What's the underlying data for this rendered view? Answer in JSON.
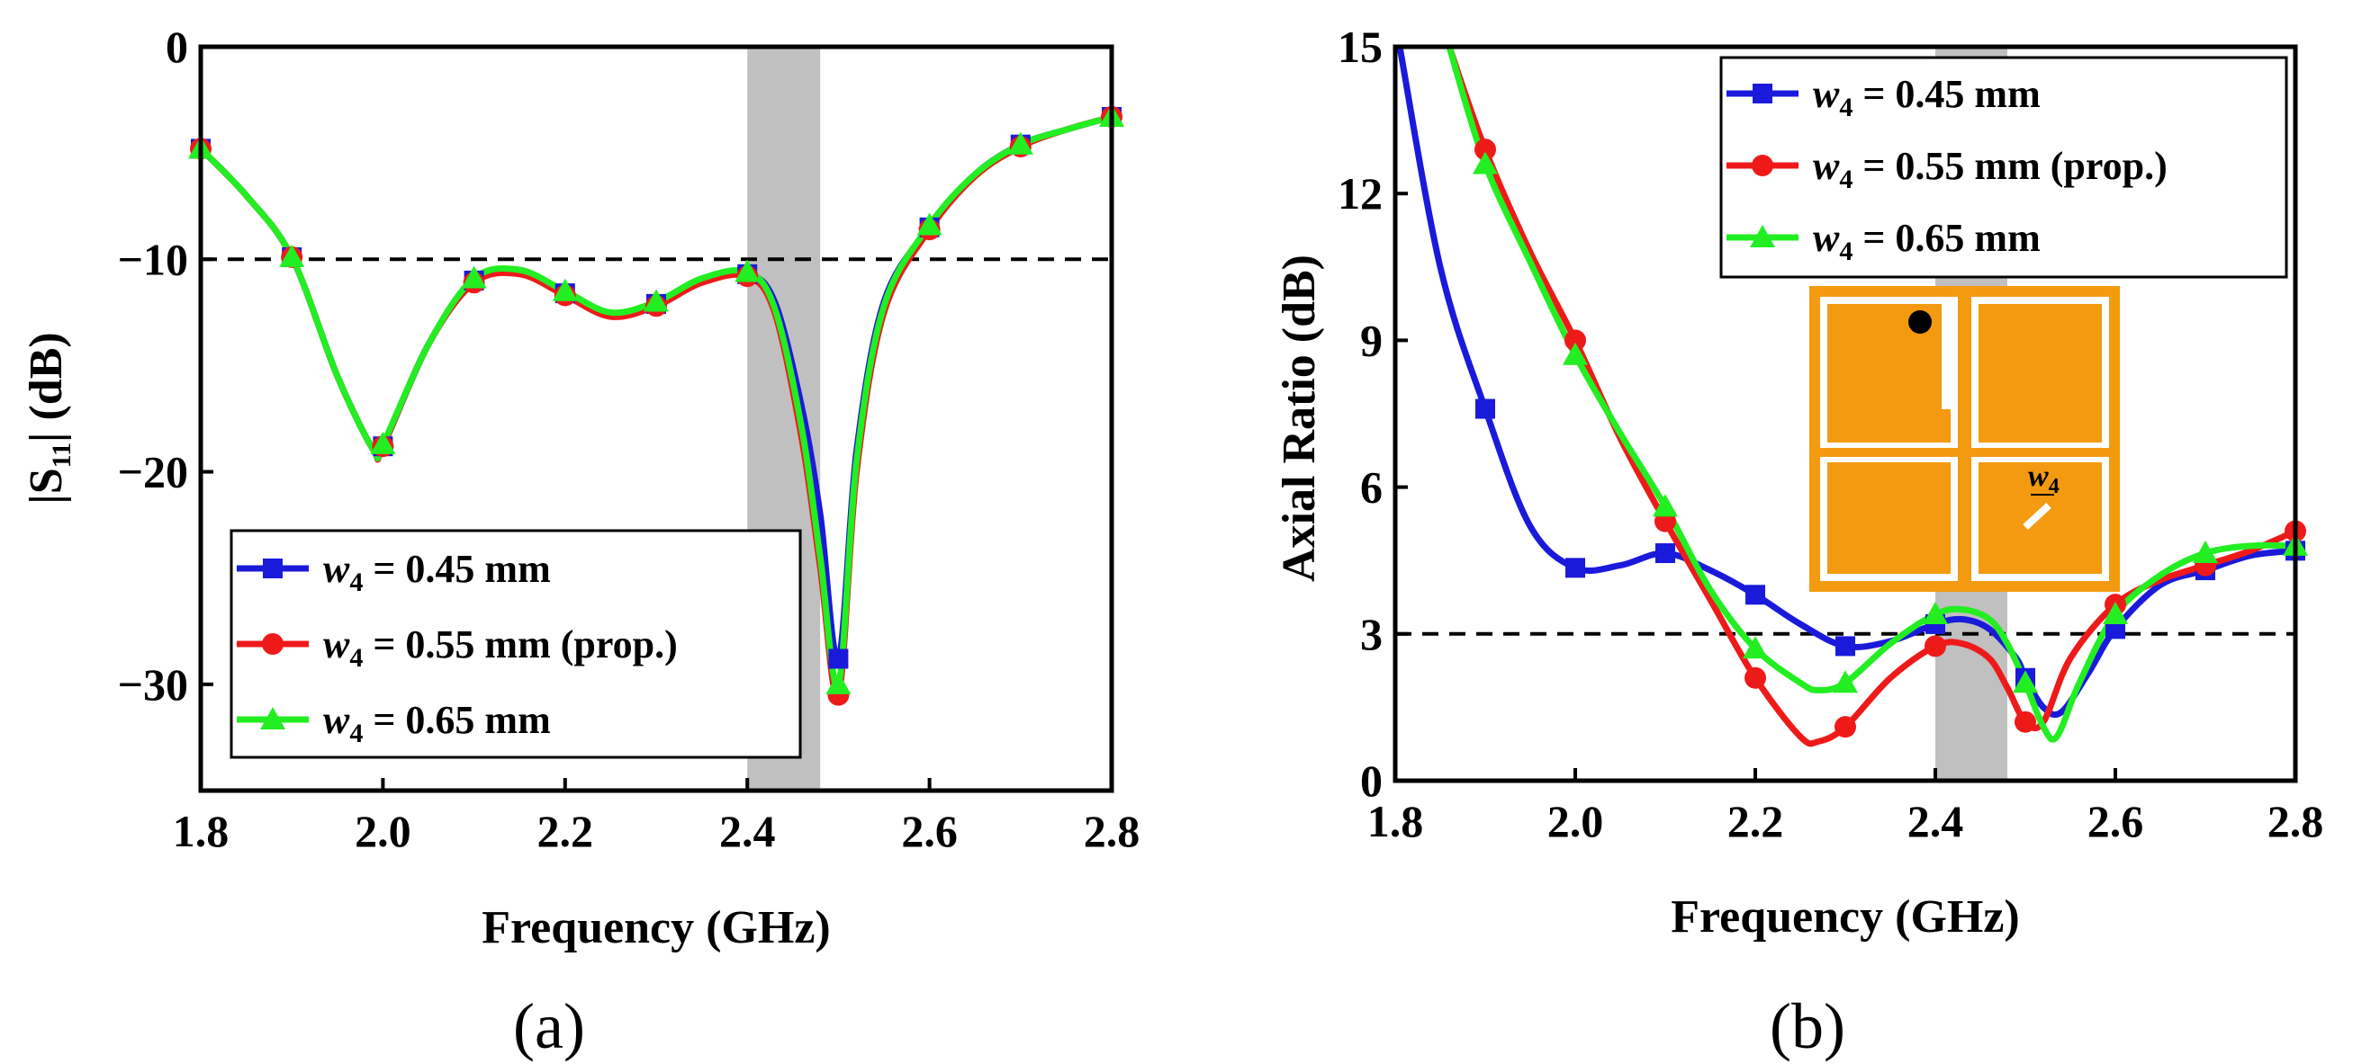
{
  "figure_labels": {
    "a": "(a)",
    "b": "(b)"
  },
  "colors": {
    "series_045": "#1a1adb",
    "series_055": "#ee1a1a",
    "series_065": "#22ee22",
    "band": "#c0c0c0",
    "patch": "#f39a10",
    "dashed": "#000000"
  },
  "inset": {
    "dimension_label": "w",
    "dimension_sub": "4"
  },
  "chart_data": [
    {
      "type": "line",
      "title": "",
      "xlabel": "Frequency (GHz)",
      "ylabel": "|S11| (dB)",
      "ylabel_main": "|S",
      "ylabel_sub": "11",
      "ylabel_tail": "| (dB)",
      "xlim": [
        1.8,
        2.8
      ],
      "ylim": [
        -35,
        0
      ],
      "xticks": [
        1.8,
        2.0,
        2.2,
        2.4,
        2.6,
        2.8
      ],
      "xtick_labels": [
        "1.8",
        "2.0",
        "2.2",
        "2.4",
        "2.6",
        "2.8"
      ],
      "yticks": [
        0,
        -10,
        -20,
        -30
      ],
      "ytick_labels": [
        "0",
        "−10",
        "−20",
        "−30"
      ],
      "reference_line": -10,
      "shaded_band": [
        2.4,
        2.48
      ],
      "legend_position": "bottom-left",
      "series": [
        {
          "name": "w4 = 0.45 mm",
          "var": "w",
          "sub": "4",
          "rest": " = 0.45 mm",
          "color": "#1a1adb",
          "marker": "square",
          "x": [
            1.8,
            1.85,
            1.9,
            1.95,
            1.99,
            2.0,
            2.05,
            2.1,
            2.15,
            2.2,
            2.25,
            2.3,
            2.35,
            2.4,
            2.43,
            2.46,
            2.48,
            2.5,
            2.52,
            2.55,
            2.6,
            2.65,
            2.7,
            2.75,
            2.8
          ],
          "y": [
            -4.8,
            -7.0,
            -9.9,
            -15.5,
            -19.0,
            -18.8,
            -14.0,
            -11.0,
            -10.5,
            -11.6,
            -12.6,
            -12.1,
            -11.0,
            -10.7,
            -12.0,
            -17.0,
            -22.0,
            -28.8,
            -19.0,
            -12.0,
            -8.5,
            -6.0,
            -4.6,
            -3.9,
            -3.3
          ],
          "marker_x": [
            1.8,
            1.9,
            2.0,
            2.1,
            2.2,
            2.3,
            2.4,
            2.5,
            2.6,
            2.7,
            2.8
          ]
        },
        {
          "name": "w4 = 0.55 mm (prop.)",
          "var": "w",
          "sub": "4",
          "rest": " = 0.55 mm (prop.)",
          "color": "#ee1a1a",
          "marker": "circle",
          "x": [
            1.8,
            1.85,
            1.9,
            1.95,
            1.99,
            2.0,
            2.05,
            2.1,
            2.15,
            2.2,
            2.25,
            2.3,
            2.35,
            2.4,
            2.43,
            2.46,
            2.48,
            2.5,
            2.52,
            2.55,
            2.6,
            2.65,
            2.7,
            2.75,
            2.8
          ],
          "y": [
            -4.8,
            -7.0,
            -9.9,
            -15.5,
            -19.0,
            -18.8,
            -14.0,
            -11.1,
            -10.7,
            -11.7,
            -12.7,
            -12.2,
            -11.1,
            -10.8,
            -12.5,
            -18.5,
            -24.5,
            -30.5,
            -20.0,
            -12.5,
            -8.6,
            -6.1,
            -4.7,
            -3.9,
            -3.3
          ],
          "marker_x": [
            1.8,
            1.9,
            2.0,
            2.1,
            2.2,
            2.3,
            2.4,
            2.5,
            2.6,
            2.7,
            2.8
          ]
        },
        {
          "name": "w4 = 0.65 mm",
          "var": "w",
          "sub": "4",
          "rest": " = 0.65 mm",
          "color": "#22ee22",
          "marker": "triangle",
          "x": [
            1.8,
            1.85,
            1.9,
            1.95,
            1.99,
            2.0,
            2.05,
            2.1,
            2.15,
            2.2,
            2.25,
            2.3,
            2.35,
            2.4,
            2.43,
            2.46,
            2.48,
            2.5,
            2.52,
            2.55,
            2.6,
            2.65,
            2.7,
            2.75,
            2.8
          ],
          "y": [
            -4.8,
            -7.0,
            -9.9,
            -15.5,
            -19.0,
            -18.7,
            -14.0,
            -10.9,
            -10.5,
            -11.5,
            -12.5,
            -12.0,
            -10.9,
            -10.6,
            -12.3,
            -18.0,
            -24.0,
            -30.0,
            -19.5,
            -12.2,
            -8.4,
            -6.0,
            -4.6,
            -3.9,
            -3.3
          ],
          "marker_x": [
            1.8,
            1.9,
            2.0,
            2.1,
            2.2,
            2.3,
            2.4,
            2.5,
            2.6,
            2.7,
            2.8
          ]
        }
      ]
    },
    {
      "type": "line",
      "title": "",
      "xlabel": "Frequency (GHz)",
      "ylabel": "Axial Ratio (dB)",
      "xlim": [
        1.8,
        2.8
      ],
      "ylim": [
        0,
        15
      ],
      "xticks": [
        1.8,
        2.0,
        2.2,
        2.4,
        2.6,
        2.8
      ],
      "xtick_labels": [
        "1.8",
        "2.0",
        "2.2",
        "2.4",
        "2.6",
        "2.8"
      ],
      "yticks": [
        0,
        3,
        6,
        9,
        12,
        15
      ],
      "ytick_labels": [
        "0",
        "3",
        "6",
        "9",
        "12",
        "15"
      ],
      "reference_line": 3,
      "shaded_band": [
        2.4,
        2.48
      ],
      "legend_position": "top-right",
      "series": [
        {
          "name": "w4 = 0.45 mm",
          "var": "w",
          "sub": "4",
          "rest": " = 0.45 mm",
          "color": "#1a1adb",
          "marker": "square",
          "x": [
            1.805,
            1.85,
            1.9,
            1.95,
            2.0,
            2.05,
            2.1,
            2.15,
            2.2,
            2.25,
            2.3,
            2.35,
            2.4,
            2.43,
            2.46,
            2.49,
            2.5,
            2.52,
            2.54,
            2.57,
            2.6,
            2.65,
            2.7,
            2.75,
            2.8
          ],
          "y": [
            15.0,
            10.5,
            7.6,
            5.2,
            4.35,
            4.4,
            4.65,
            4.3,
            3.8,
            3.2,
            2.75,
            2.85,
            3.2,
            3.3,
            3.1,
            2.5,
            2.1,
            1.5,
            1.4,
            2.2,
            3.1,
            4.0,
            4.3,
            4.6,
            4.7
          ],
          "marker_x": [
            1.9,
            2.0,
            2.1,
            2.2,
            2.3,
            2.4,
            2.5,
            2.6,
            2.7,
            2.8
          ]
        },
        {
          "name": "w4 = 0.55 mm (prop.)",
          "var": "w",
          "sub": "4",
          "rest": " = 0.55 mm (prop.)",
          "color": "#ee1a1a",
          "marker": "circle",
          "x": [
            1.86,
            1.9,
            1.95,
            2.0,
            2.05,
            2.1,
            2.15,
            2.2,
            2.25,
            2.27,
            2.3,
            2.35,
            2.4,
            2.43,
            2.46,
            2.48,
            2.5,
            2.52,
            2.55,
            2.6,
            2.65,
            2.7,
            2.75,
            2.8
          ],
          "y": [
            15.0,
            12.9,
            10.8,
            9.0,
            7.0,
            5.3,
            3.7,
            2.1,
            0.9,
            0.8,
            1.1,
            2.1,
            2.75,
            2.8,
            2.5,
            1.9,
            1.2,
            1.2,
            2.5,
            3.6,
            4.1,
            4.4,
            4.7,
            5.1
          ],
          "marker_x": [
            1.9,
            2.0,
            2.1,
            2.2,
            2.3,
            2.4,
            2.5,
            2.6,
            2.7,
            2.8
          ]
        },
        {
          "name": "w4 = 0.65 mm",
          "var": "w",
          "sub": "4",
          "rest": " = 0.65 mm",
          "color": "#22ee22",
          "marker": "triangle",
          "x": [
            1.86,
            1.9,
            1.95,
            2.0,
            2.05,
            2.1,
            2.15,
            2.2,
            2.25,
            2.27,
            2.3,
            2.35,
            2.4,
            2.43,
            2.46,
            2.48,
            2.5,
            2.52,
            2.535,
            2.56,
            2.6,
            2.65,
            2.7,
            2.75,
            2.8
          ],
          "y": [
            15.0,
            12.6,
            10.6,
            8.7,
            7.1,
            5.6,
            3.9,
            2.7,
            2.0,
            1.85,
            2.0,
            2.8,
            3.4,
            3.5,
            3.3,
            2.8,
            2.0,
            1.1,
            0.9,
            2.0,
            3.4,
            4.2,
            4.65,
            4.8,
            4.8
          ],
          "marker_x": [
            1.9,
            2.0,
            2.1,
            2.2,
            2.3,
            2.4,
            2.5,
            2.6,
            2.7,
            2.8
          ]
        }
      ]
    }
  ]
}
